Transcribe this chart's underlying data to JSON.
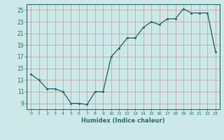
{
  "x": [
    0,
    1,
    2,
    3,
    4,
    5,
    6,
    7,
    8,
    9,
    10,
    11,
    12,
    13,
    14,
    15,
    16,
    17,
    18,
    19,
    20,
    21,
    22,
    23
  ],
  "y": [
    14,
    13,
    11.5,
    11.5,
    11,
    9,
    9,
    8.8,
    11,
    11,
    17,
    18.5,
    20.2,
    20.2,
    22,
    23,
    22.5,
    23.5,
    23.5,
    25.2,
    24.5,
    24.5,
    24.5,
    17.8
  ],
  "xlabel": "Humidex (Indice chaleur)",
  "bg_color": "#cce8e8",
  "grid_color": "#b0d4d4",
  "line_color": "#2e6b6b",
  "marker_color": "#2e6b6b",
  "ylim_min": 8,
  "ylim_max": 26,
  "xlim_min": -0.5,
  "xlim_max": 23.5,
  "yticks": [
    9,
    11,
    13,
    15,
    17,
    19,
    21,
    23,
    25
  ],
  "xticks": [
    0,
    1,
    2,
    3,
    4,
    5,
    6,
    7,
    8,
    9,
    10,
    11,
    12,
    13,
    14,
    15,
    16,
    17,
    18,
    19,
    20,
    21,
    22,
    23
  ]
}
